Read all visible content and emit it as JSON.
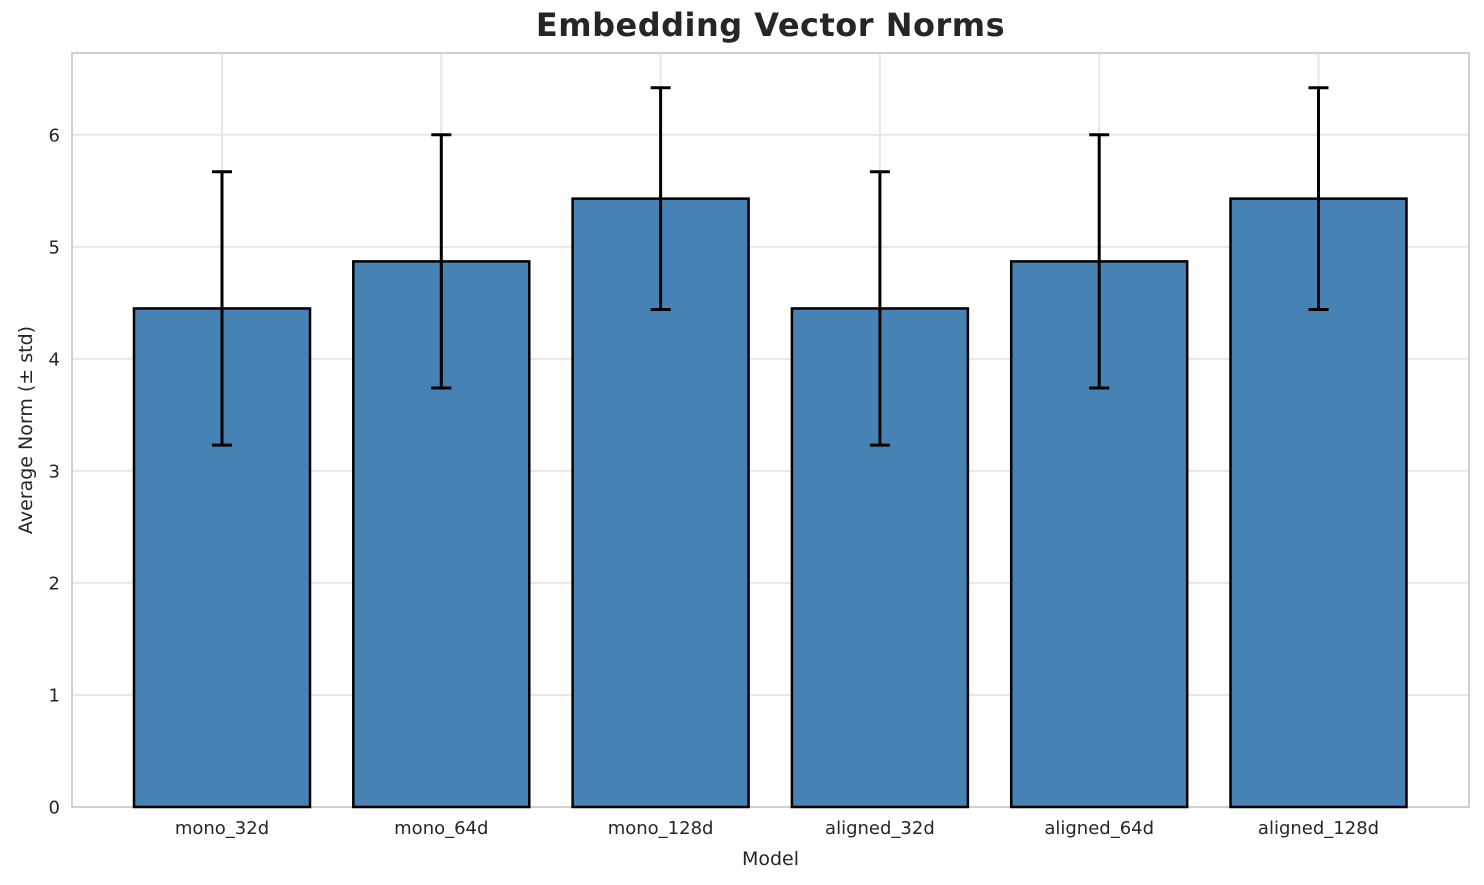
{
  "figure": {
    "background": "#ffffff"
  },
  "chart_data": {
    "type": "bar",
    "title": "Embedding Vector Norms",
    "xlabel": "Model",
    "ylabel": "Average Norm (± std)",
    "categories": [
      "mono_32d",
      "mono_64d",
      "mono_128d",
      "aligned_32d",
      "aligned_64d",
      "aligned_128d"
    ],
    "values": [
      4.45,
      4.87,
      5.43,
      4.45,
      4.87,
      5.43
    ],
    "errors": [
      1.22,
      1.13,
      0.99,
      1.22,
      1.13,
      0.99
    ],
    "error_style": "symmetric std, black lines with end caps",
    "yticks": [
      0,
      1,
      2,
      3,
      4,
      5,
      6
    ],
    "ylim": [
      0,
      6.73
    ],
    "grid": true,
    "grid_style": "horizontal and vertical light gray lines",
    "legend": "none",
    "colors": {
      "bar": "#4682b4",
      "bar_edge": "#000000",
      "error": "#000000",
      "grid": "#e7e7e7",
      "spine": "#d0d0d0",
      "text": "#262626",
      "background": "#ffffff"
    }
  }
}
